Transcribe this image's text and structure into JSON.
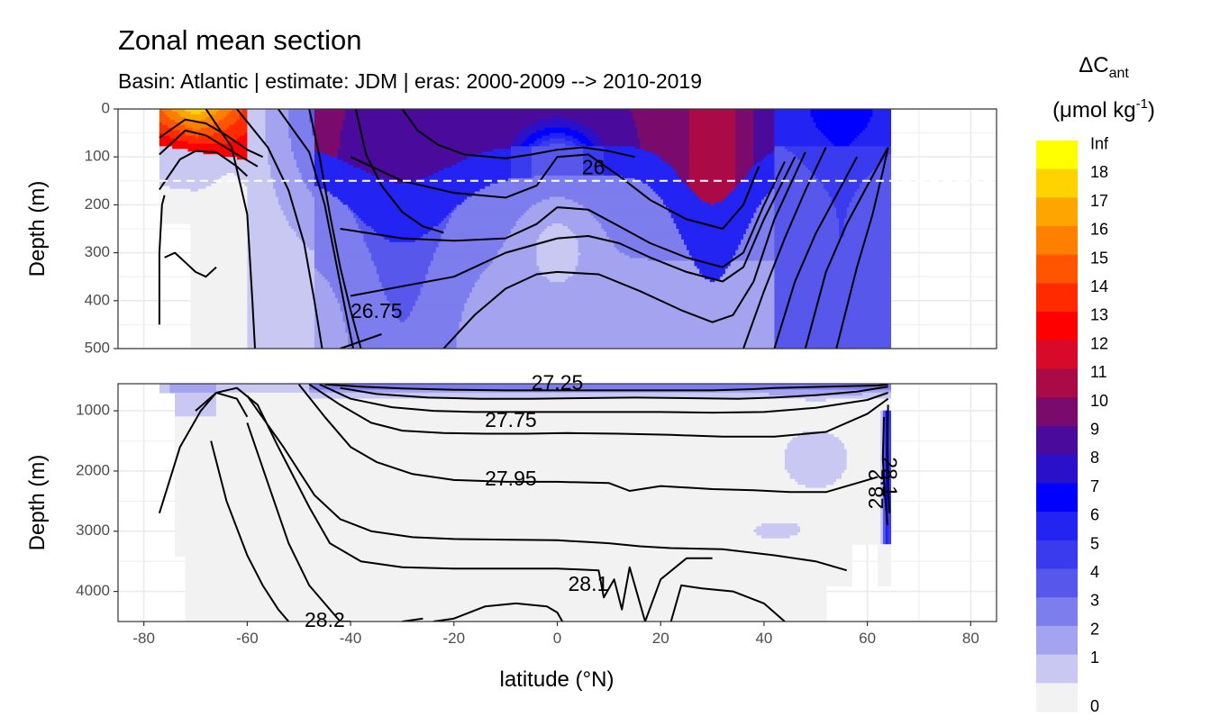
{
  "chart_data": {
    "type": "heatmap",
    "title": "Zonal mean section",
    "subtitle": "Basin: Atlantic | estimate: JDM  | eras: 2000-2009 --> 2010-2019",
    "xlabel": "latitude (°N)",
    "ylabel": "Depth (m)",
    "x_ticks": [
      -80,
      -60,
      -40,
      -20,
      0,
      20,
      40,
      60,
      80
    ],
    "xlim": [
      -85,
      85
    ],
    "panels": [
      {
        "name": "upper",
        "ylim": [
          0,
          500
        ],
        "y_ticks": [
          0,
          100,
          200,
          300,
          400,
          500
        ],
        "reversed": true
      },
      {
        "name": "lower",
        "ylim": [
          550,
          4500
        ],
        "y_ticks": [
          1000,
          2000,
          3000,
          4000
        ],
        "reversed": true
      }
    ],
    "reference_line": {
      "depth": 150,
      "style": "dashed",
      "color": "#ffffff"
    },
    "legend": {
      "title": "ΔC",
      "title_subscript": "ant",
      "unit_prefix": "(μmol kg",
      "unit_exponent": "-1",
      "unit_suffix": ")",
      "placement": "right",
      "levels": [
        "0",
        "1",
        "2",
        "3",
        "4",
        "5",
        "6",
        "7",
        "8",
        "9",
        "10",
        "11",
        "12",
        "13",
        "14",
        "15",
        "16",
        "17",
        "18",
        "Inf"
      ],
      "colors": [
        "#f2f2f2",
        "#c8c8f2",
        "#a3a3ef",
        "#7d7dee",
        "#5757ec",
        "#3a3aee",
        "#2323f2",
        "#0000ff",
        "#2a10c8",
        "#4a0a9c",
        "#7a0a6c",
        "#aa0a46",
        "#d80a2a",
        "#ff0000",
        "#ff2a00",
        "#ff5500",
        "#ff7f00",
        "#ffa500",
        "#ffd200",
        "#ffff00"
      ]
    },
    "isopycnal_labels": [
      {
        "text": "26",
        "lat": 7,
        "depth": 125
      },
      {
        "text": "26.75",
        "lat": -35,
        "depth": 425
      },
      {
        "text": "27.25",
        "lat": 0,
        "depth": 560
      },
      {
        "text": "27.75",
        "lat": -9,
        "depth": 1180
      },
      {
        "text": "27.95",
        "lat": -9,
        "depth": 2150
      },
      {
        "text": "28.1",
        "lat": 6,
        "depth": 3900
      },
      {
        "text": "28.2",
        "lat": -45,
        "depth": 4500
      },
      {
        "text": "28.2",
        "lat": 62,
        "depth": 2300,
        "rotate": -90
      },
      {
        "text": "28.1",
        "lat": 64,
        "depth": 2100,
        "rotate": 90
      }
    ],
    "isopycnals_upper": [
      {
        "lats": [
          -77,
          -72,
          -68,
          -64,
          -60,
          -57
        ],
        "depths": [
          60,
          22,
          30,
          55,
          85,
          100
        ]
      },
      {
        "lats": [
          -77,
          -72,
          -68,
          -63,
          -58
        ],
        "depths": [
          95,
          45,
          55,
          88,
          120
        ]
      },
      {
        "lats": [
          -77,
          -73,
          -70,
          -66,
          -62,
          -60
        ],
        "depths": [
          168,
          105,
          88,
          90,
          120,
          140
        ]
      },
      {
        "lats": [
          -68,
          -63,
          -60,
          -59,
          -58.5
        ],
        "depths": [
          0,
          80,
          220,
          400,
          500
        ]
      },
      {
        "lats": [
          -62,
          -56,
          -52,
          -49,
          -47,
          -45.5
        ],
        "depths": [
          0,
          80,
          170,
          280,
          400,
          500
        ]
      },
      {
        "lats": [
          -54,
          -48,
          -45,
          -43,
          -41,
          -39.5
        ],
        "depths": [
          0,
          90,
          200,
          310,
          420,
          500
        ]
      },
      {
        "lats": [
          -48,
          -46,
          -44,
          -42,
          -40,
          -38
        ],
        "depths": [
          0,
          100,
          220,
          330,
          420,
          500
        ]
      },
      {
        "lats": [
          -39,
          -37,
          -34,
          -30,
          -26,
          -22
        ],
        "depths": [
          0,
          95,
          160,
          215,
          245,
          258
        ]
      },
      {
        "lats": [
          -30,
          -27,
          -23,
          -18,
          -10,
          -5,
          0,
          5,
          10,
          15
        ],
        "depths": [
          0,
          45,
          75,
          95,
          103,
          95,
          85,
          80,
          88,
          100
        ]
      },
      {
        "lats": [
          -40,
          -30,
          -20,
          -10,
          -4,
          0,
          6,
          12,
          18,
          25,
          32,
          36,
          39
        ],
        "depths": [
          100,
          150,
          175,
          185,
          160,
          100,
          95,
          140,
          190,
          230,
          250,
          200,
          120
        ]
      },
      {
        "lats": [
          -42,
          -30,
          -20,
          -10,
          -4,
          0,
          6,
          12,
          18,
          25,
          32,
          36,
          40,
          44
        ],
        "depths": [
          250,
          270,
          275,
          270,
          240,
          205,
          210,
          245,
          280,
          310,
          330,
          300,
          200,
          110
        ]
      },
      {
        "lats": [
          -40,
          -30,
          -20,
          -10,
          0,
          6,
          12,
          18,
          25,
          32,
          36,
          40,
          46
        ],
        "depths": [
          390,
          370,
          350,
          300,
          270,
          265,
          280,
          310,
          340,
          360,
          330,
          230,
          100
        ]
      },
      {
        "lats": [
          -22,
          -16,
          -10,
          -4,
          0,
          8,
          16,
          24,
          30,
          34,
          38,
          42,
          48
        ],
        "depths": [
          500,
          430,
          375,
          345,
          340,
          345,
          380,
          420,
          445,
          430,
          360,
          230,
          90
        ]
      },
      {
        "lats": [
          -42,
          -34
        ],
        "depths": [
          500,
          470
        ]
      },
      {
        "lats": [
          36,
          40,
          44,
          48,
          52
        ],
        "depths": [
          500,
          380,
          270,
          170,
          80
        ]
      },
      {
        "lats": [
          42,
          46,
          50,
          54,
          58
        ],
        "depths": [
          500,
          360,
          260,
          180,
          100
        ]
      },
      {
        "lats": [
          48,
          52,
          56,
          60,
          64
        ],
        "depths": [
          500,
          340,
          240,
          160,
          80
        ]
      },
      {
        "lats": [
          54,
          58,
          61,
          63,
          64
        ],
        "depths": [
          500,
          330,
          220,
          130,
          80
        ]
      },
      {
        "lats": [
          -77,
          -77,
          -76.5,
          -76
        ],
        "depths": [
          450,
          300,
          200,
          180
        ]
      },
      {
        "lats": [
          -76,
          -74,
          -72,
          -70,
          -68,
          -66
        ],
        "depths": [
          310,
          300,
          320,
          340,
          350,
          330
        ]
      }
    ],
    "isopycnals_lower": [
      {
        "lats": [
          -45,
          -38,
          -30,
          -20,
          -10,
          0,
          10,
          20,
          30,
          38,
          42,
          52,
          62,
          64
        ],
        "depths": [
          560,
          600,
          630,
          650,
          660,
          660,
          660,
          660,
          660,
          640,
          620,
          600,
          580,
          560
        ]
      },
      {
        "lats": [
          -42,
          -35,
          -25,
          -15,
          -5,
          5,
          15,
          25,
          35,
          42,
          50,
          58,
          64
        ],
        "depths": [
          620,
          720,
          780,
          800,
          800,
          790,
          780,
          790,
          800,
          780,
          740,
          680,
          600
        ]
      },
      {
        "lats": [
          -46,
          -40,
          -32,
          -24,
          -16,
          -8,
          0,
          10,
          20,
          30,
          40,
          50,
          60,
          64
        ],
        "depths": [
          560,
          800,
          940,
          1000,
          1020,
          1020,
          1020,
          1020,
          1020,
          1030,
          1020,
          950,
          820,
          700
        ]
      },
      {
        "lats": [
          -48,
          -42,
          -36,
          -30,
          -22,
          -14,
          -6,
          2,
          12,
          22,
          32,
          42,
          52,
          60,
          64
        ],
        "depths": [
          560,
          900,
          1200,
          1330,
          1370,
          1380,
          1380,
          1370,
          1380,
          1400,
          1430,
          1430,
          1350,
          1050,
          800
        ]
      },
      {
        "lats": [
          -50,
          -45,
          -40,
          -35,
          -28,
          -20,
          -10,
          0,
          10,
          14,
          20,
          30,
          38,
          45,
          52,
          58,
          62
        ],
        "depths": [
          560,
          1100,
          1600,
          1850,
          2050,
          2150,
          2180,
          2180,
          2200,
          2330,
          2250,
          2300,
          2320,
          2350,
          2350,
          2200,
          2100
        ]
      },
      {
        "lats": [
          -60,
          -53,
          -47,
          -42,
          -36,
          -28,
          -20,
          -10,
          0,
          6,
          10,
          16,
          22,
          32,
          42,
          50,
          56
        ],
        "depths": [
          750,
          1600,
          2400,
          2800,
          3000,
          3100,
          3130,
          3140,
          3150,
          3180,
          3200,
          3250,
          3280,
          3300,
          3400,
          3500,
          3650
        ]
      },
      {
        "lats": [
          -70,
          -66,
          -62,
          -58,
          -54,
          -48,
          -44,
          -38,
          -30,
          -20,
          -10,
          0,
          8,
          9,
          11,
          12.5,
          14,
          17,
          20,
          25,
          30
        ],
        "depths": [
          1000,
          700,
          620,
          900,
          1600,
          2600,
          3200,
          3500,
          3600,
          3620,
          3620,
          3620,
          3650,
          4100,
          3800,
          4300,
          3600,
          4500,
          3800,
          3450,
          3450
        ]
      },
      {
        "lats": [
          -77,
          -73,
          -69,
          -66,
          -62,
          -60
        ],
        "depths": [
          2700,
          1600,
          1000,
          700,
          800,
          1100
        ]
      },
      {
        "lats": [
          -60,
          -56,
          -52,
          -48,
          -44,
          -42,
          -40
        ],
        "depths": [
          1200,
          2200,
          3200,
          3900,
          4300,
          4500,
          4500
        ]
      },
      {
        "lats": [
          -67,
          -64,
          -60,
          -57,
          -54,
          -52
        ],
        "depths": [
          1500,
          2500,
          3400,
          3900,
          4300,
          4500
        ]
      },
      {
        "lats": [
          -24,
          -20,
          -14,
          -8,
          -2,
          0,
          1
        ],
        "depths": [
          4500,
          4450,
          4250,
          4200,
          4250,
          4350,
          4500
        ]
      },
      {
        "lats": [
          22,
          24,
          28,
          34,
          40,
          44
        ],
        "depths": [
          4500,
          3900,
          3950,
          4000,
          4200,
          4500
        ]
      },
      {
        "lats": [
          -30,
          -26
        ],
        "depths": [
          4500,
          4450
        ]
      },
      {
        "lats": [
          63.2,
          63.0,
          63.4,
          63.9
        ],
        "depths": [
          1100,
          1800,
          2400,
          2900
        ]
      },
      {
        "lats": [
          64.0,
          63.9,
          64.1,
          64.3
        ],
        "depths": [
          900,
          1600,
          2300,
          2700
        ]
      }
    ]
  }
}
